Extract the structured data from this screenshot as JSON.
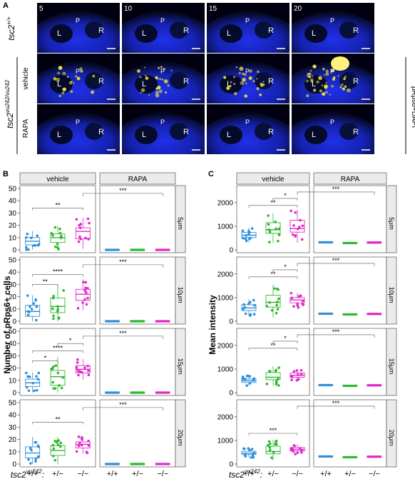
{
  "panel_labels": {
    "a": "A",
    "b": "B",
    "c": "C"
  },
  "micrographs": {
    "depth_labels": [
      "5",
      "10",
      "15",
      "20"
    ],
    "stain_label": "pRps6+DAPI",
    "row_wt_label": "tsc2",
    "row_wt_sup": "+/+",
    "row_mut_label": "tsc2",
    "row_mut_sup": "vu242/vu242",
    "sub_vehicle": "vehicle",
    "sub_rapa": "RAPA",
    "region_labels": {
      "L": "L",
      "P": "P",
      "R": "R"
    },
    "colors": {
      "dapi": "#1a2bd6",
      "prps6": "#e8e040",
      "bg": "#000010"
    }
  },
  "chart_data": [
    {
      "id": "B",
      "type": "box-strip",
      "ylabel": "Number of pRps6+ cells",
      "facet_cols": [
        "vehicle",
        "RAPA"
      ],
      "facet_rows": [
        "5μm",
        "10μm",
        "15μm",
        "20μm"
      ],
      "categories": [
        "+/+",
        "+/−",
        "−/−"
      ],
      "ylim": [
        0,
        50
      ],
      "yticks": [
        0,
        10,
        20,
        30,
        40,
        50
      ],
      "colors": [
        "#2e8fd8",
        "#2db82d",
        "#e028c8"
      ],
      "panels": [
        {
          "vehicle": [
            [
              4,
              7,
              10
            ],
            [
              6,
              10,
              13
            ],
            [
              9,
              15,
              18
            ]
          ],
          "rapa": [
            [
              0,
              0,
              0
            ],
            [
              0,
              0,
              0
            ],
            [
              0,
              0,
              0
            ]
          ],
          "sig": [
            {
              "from": 0,
              "to": 2,
              "label": "**",
              "y": 34
            }
          ],
          "rapa_sig": {
            "label": "***",
            "y": 46
          }
        },
        {
          "vehicle": [
            [
              4,
              8,
              13
            ],
            [
              7,
              12,
              19
            ],
            [
              17,
              22,
              26
            ]
          ],
          "rapa": [
            [
              0,
              0,
              0
            ],
            [
              0,
              0,
              0
            ],
            [
              0,
              0,
              0
            ]
          ],
          "sig": [
            {
              "from": 0,
              "to": 1,
              "label": "**",
              "y": 30
            },
            {
              "from": 0,
              "to": 2,
              "label": "****",
              "y": 38
            }
          ],
          "rapa_sig": {
            "label": "***",
            "y": 46
          }
        },
        {
          "vehicle": [
            [
              5,
              8,
              11
            ],
            [
              6,
              13,
              18
            ],
            [
              16,
              19,
              22
            ]
          ],
          "rapa": [
            [
              0,
              0,
              0
            ],
            [
              0,
              0,
              0
            ],
            [
              0,
              0,
              0
            ]
          ],
          "sig": [
            {
              "from": 0,
              "to": 1,
              "label": "*",
              "y": 26
            },
            {
              "from": 0,
              "to": 2,
              "label": "****",
              "y": 34
            },
            {
              "from": 1,
              "to": 2,
              "label": "*",
              "y": 40
            }
          ],
          "rapa_sig": {
            "label": "***",
            "y": 46
          }
        },
        {
          "vehicle": [
            [
              5,
              9,
              14
            ],
            [
              7,
              11,
              15
            ],
            [
              13,
              16,
              18
            ]
          ],
          "rapa": [
            [
              0,
              0,
              0
            ],
            [
              0,
              0,
              0
            ],
            [
              0,
              0,
              0
            ]
          ],
          "sig": [
            {
              "from": 0,
              "to": 2,
              "label": "**",
              "y": 34
            }
          ],
          "rapa_sig": {
            "label": "***",
            "y": 46
          }
        }
      ]
    },
    {
      "id": "C",
      "type": "box-strip",
      "ylabel": "Mean intensity",
      "facet_cols": [
        "vehicle",
        "RAPA"
      ],
      "facet_rows": [
        "5μm",
        "10μm",
        "15μm",
        "20μm"
      ],
      "categories": [
        "+/+",
        "+/−",
        "−/−"
      ],
      "ylim": [
        0,
        2600
      ],
      "yticks": [
        0,
        1000,
        2000
      ],
      "colors": [
        "#2e8fd8",
        "#2db82d",
        "#e028c8"
      ],
      "panels": [
        {
          "vehicle": [
            [
              520,
              620,
              740
            ],
            [
              700,
              850,
              1150
            ],
            [
              750,
              900,
              1250
            ]
          ],
          "rapa": [
            [
              320,
              320,
              320
            ],
            [
              290,
              290,
              290
            ],
            [
              310,
              310,
              310
            ]
          ],
          "sig": [
            {
              "from": 0,
              "to": 2,
              "label": "**",
              "y": 1880
            },
            {
              "from": 1,
              "to": 2,
              "label": "*",
              "y": 2180
            }
          ],
          "rapa_sig": {
            "label": "***",
            "y": 2450
          }
        },
        {
          "vehicle": [
            [
              450,
              560,
              700
            ],
            [
              600,
              800,
              1100
            ],
            [
              780,
              900,
              1000
            ]
          ],
          "rapa": [
            [
              320,
              320,
              320
            ],
            [
              290,
              290,
              290
            ],
            [
              310,
              310,
              310
            ]
          ],
          "sig": [
            {
              "from": 0,
              "to": 2,
              "label": "**",
              "y": 1880
            },
            {
              "from": 1,
              "to": 2,
              "label": "*",
              "y": 2180
            }
          ],
          "rapa_sig": {
            "label": "***",
            "y": 2450
          }
        },
        {
          "vehicle": [
            [
              430,
              500,
              580
            ],
            [
              550,
              650,
              850
            ],
            [
              650,
              730,
              830
            ]
          ],
          "rapa": [
            [
              320,
              320,
              320
            ],
            [
              290,
              290,
              290
            ],
            [
              310,
              310,
              310
            ]
          ],
          "sig": [
            {
              "from": 0,
              "to": 2,
              "label": "**",
              "y": 1880
            },
            {
              "from": 1,
              "to": 2,
              "label": "*",
              "y": 2180
            }
          ],
          "rapa_sig": {
            "label": "***",
            "y": 2450
          }
        },
        {
          "vehicle": [
            [
              400,
              460,
              540
            ],
            [
              430,
              530,
              750
            ],
            [
              550,
              620,
              700
            ]
          ],
          "rapa": [
            [
              320,
              320,
              320
            ],
            [
              290,
              290,
              290
            ],
            [
              310,
              310,
              310
            ]
          ],
          "sig": [
            {
              "from": 0,
              "to": 2,
              "label": "***",
              "y": 1300
            }
          ],
          "rapa_sig": {
            "label": "***",
            "y": 2450
          }
        }
      ]
    }
  ],
  "x_axis_prefix": "tsc2",
  "x_axis_sup": "vu242",
  "x_axis_suffix": ":"
}
